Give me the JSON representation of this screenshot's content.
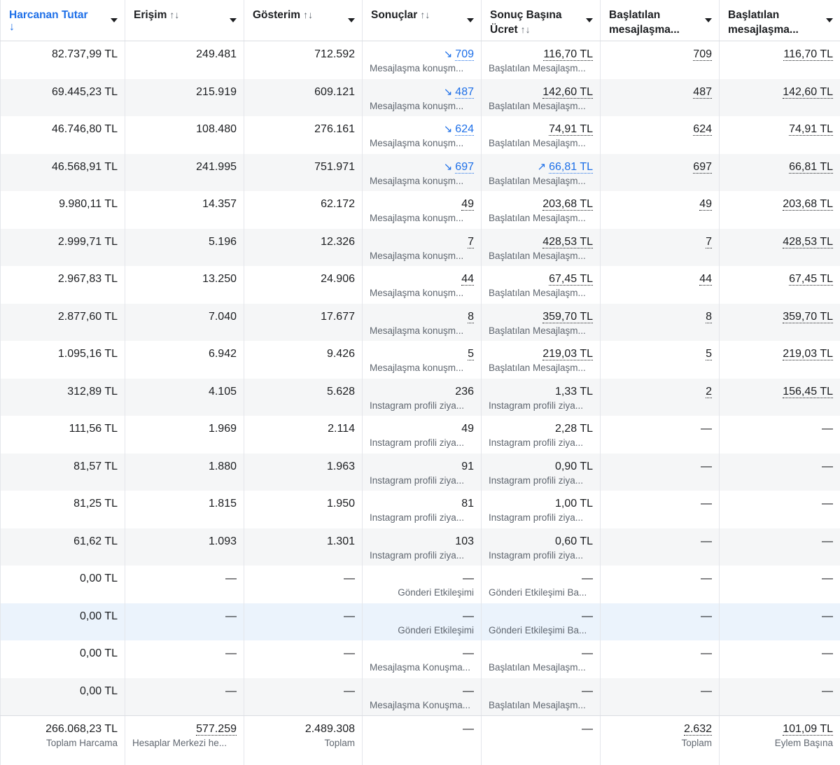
{
  "columns": [
    {
      "label": "Harcanan Tutar",
      "sort": "↓",
      "sorted": true
    },
    {
      "label": "Erişim",
      "sort": "↑↓"
    },
    {
      "label": "Gösterim",
      "sort": "↑↓"
    },
    {
      "label": "Sonuçlar",
      "sort": "↑↓"
    },
    {
      "label": "Sonuç Başına Ücret",
      "line1": "Sonuç Başına",
      "line2": "Ücret",
      "sort": "↑↓"
    },
    {
      "label": "Başlatılan mesajlaşma...",
      "line1": "Başlatılan",
      "line2": "mesajlaşma..."
    },
    {
      "label": "Başlatılan mesajlaşma...",
      "line1": "Başlatılan",
      "line2": "mesajlaşma..."
    }
  ],
  "rows": [
    {
      "spend": "82.737,99 TL",
      "reach": "249.481",
      "impr": "712.592",
      "results": "709",
      "results_trend": "↘",
      "results_sub": "Mesajlaşma konuşm...",
      "cpr": "116,70 TL",
      "cpr_sub": "Başlatılan Mesajlaşm...",
      "conv": "709",
      "cpc": "116,70 TL"
    },
    {
      "spend": "69.445,23 TL",
      "reach": "215.919",
      "impr": "609.121",
      "results": "487",
      "results_trend": "↘",
      "results_sub": "Mesajlaşma konuşm...",
      "cpr": "142,60 TL",
      "cpr_sub": "Başlatılan Mesajlaşm...",
      "conv": "487",
      "cpc": "142,60 TL"
    },
    {
      "spend": "46.746,80 TL",
      "reach": "108.480",
      "impr": "276.161",
      "results": "624",
      "results_trend": "↘",
      "results_sub": "Mesajlaşma konuşm...",
      "cpr": "74,91 TL",
      "cpr_sub": "Başlatılan Mesajlaşm...",
      "conv": "624",
      "cpc": "74,91 TL"
    },
    {
      "spend": "46.568,91 TL",
      "reach": "241.995",
      "impr": "751.971",
      "results": "697",
      "results_trend": "↘",
      "results_sub": "Mesajlaşma konuşm...",
      "cpr": "66,81 TL",
      "cpr_trend": "↗",
      "cpr_sub": "Başlatılan Mesajlaşm...",
      "conv": "697",
      "cpc": "66,81 TL"
    },
    {
      "spend": "9.980,11 TL",
      "reach": "14.357",
      "impr": "62.172",
      "results": "49",
      "results_sub": "Mesajlaşma konuşm...",
      "cpr": "203,68 TL",
      "cpr_sub": "Başlatılan Mesajlaşm...",
      "conv": "49",
      "cpc": "203,68 TL"
    },
    {
      "spend": "2.999,71 TL",
      "reach": "5.196",
      "impr": "12.326",
      "results": "7",
      "results_sub": "Mesajlaşma konuşm...",
      "cpr": "428,53 TL",
      "cpr_sub": "Başlatılan Mesajlaşm...",
      "conv": "7",
      "cpc": "428,53 TL"
    },
    {
      "spend": "2.967,83 TL",
      "reach": "13.250",
      "impr": "24.906",
      "results": "44",
      "results_sub": "Mesajlaşma konuşm...",
      "cpr": "67,45 TL",
      "cpr_sub": "Başlatılan Mesajlaşm...",
      "conv": "44",
      "cpc": "67,45 TL"
    },
    {
      "spend": "2.877,60 TL",
      "reach": "7.040",
      "impr": "17.677",
      "results": "8",
      "results_sub": "Mesajlaşma konuşm...",
      "cpr": "359,70 TL",
      "cpr_sub": "Başlatılan Mesajlaşm...",
      "conv": "8",
      "cpc": "359,70 TL"
    },
    {
      "spend": "1.095,16 TL",
      "reach": "6.942",
      "impr": "9.426",
      "results": "5",
      "results_sub": "Mesajlaşma konuşm...",
      "cpr": "219,03 TL",
      "cpr_sub": "Başlatılan Mesajlaşm...",
      "conv": "5",
      "cpc": "219,03 TL"
    },
    {
      "spend": "312,89 TL",
      "reach": "4.105",
      "impr": "5.628",
      "results": "236",
      "results_plain": true,
      "results_sub": "Instagram profili ziya...",
      "cpr": "1,33 TL",
      "cpr_plain": true,
      "cpr_sub": "Instagram profili ziya...",
      "conv": "2",
      "cpc": "156,45 TL"
    },
    {
      "spend": "111,56 TL",
      "reach": "1.969",
      "impr": "2.114",
      "results": "49",
      "results_plain": true,
      "results_sub": "Instagram profili ziya...",
      "cpr": "2,28 TL",
      "cpr_plain": true,
      "cpr_sub": "Instagram profili ziya...",
      "conv": "—",
      "cpc": "—"
    },
    {
      "spend": "81,57 TL",
      "reach": "1.880",
      "impr": "1.963",
      "results": "91",
      "results_plain": true,
      "results_sub": "Instagram profili ziya...",
      "cpr": "0,90 TL",
      "cpr_plain": true,
      "cpr_sub": "Instagram profili ziya...",
      "conv": "—",
      "cpc": "—"
    },
    {
      "spend": "81,25 TL",
      "reach": "1.815",
      "impr": "1.950",
      "results": "81",
      "results_plain": true,
      "results_sub": "Instagram profili ziya...",
      "cpr": "1,00 TL",
      "cpr_plain": true,
      "cpr_sub": "Instagram profili ziya...",
      "conv": "—",
      "cpc": "—"
    },
    {
      "spend": "61,62 TL",
      "reach": "1.093",
      "impr": "1.301",
      "results": "103",
      "results_plain": true,
      "results_sub": "Instagram profili ziya...",
      "cpr": "0,60 TL",
      "cpr_plain": true,
      "cpr_sub": "Instagram profili ziya...",
      "conv": "—",
      "cpc": "—"
    },
    {
      "spend": "0,00 TL",
      "reach": "—",
      "impr": "—",
      "results": "—",
      "results_plain": true,
      "results_sub": "Gönderi Etkileşimi",
      "results_sub_align": "right",
      "cpr": "—",
      "cpr_plain": true,
      "cpr_sub": "Gönderi Etkileşimi Ba...",
      "conv": "—",
      "cpc": "—"
    },
    {
      "spend": "0,00 TL",
      "reach": "—",
      "impr": "—",
      "results": "—",
      "results_plain": true,
      "results_sub": "Gönderi Etkileşimi",
      "results_sub_align": "right",
      "cpr": "—",
      "cpr_plain": true,
      "cpr_sub": "Gönderi Etkileşimi Ba...",
      "conv": "—",
      "cpc": "—",
      "highlight": true
    },
    {
      "spend": "0,00 TL",
      "reach": "—",
      "impr": "—",
      "results": "—",
      "results_plain": true,
      "results_sub": "Mesajlaşma Konuşma...",
      "cpr": "—",
      "cpr_plain": true,
      "cpr_sub": "Başlatılan Mesajlaşm...",
      "conv": "—",
      "cpc": "—"
    },
    {
      "spend": "0,00 TL",
      "reach": "—",
      "impr": "—",
      "results": "—",
      "results_plain": true,
      "results_sub": "Mesajlaşma Konuşma...",
      "cpr": "—",
      "cpr_plain": true,
      "cpr_sub": "Başlatılan Mesajlaşm...",
      "conv": "—",
      "cpc": "—"
    }
  ],
  "footer": {
    "spend": "266.068,23 TL",
    "spend_sub": "Toplam Harcama",
    "reach": "577.259",
    "reach_sub": "Hesaplar Merkezi he...",
    "impr": "2.489.308",
    "impr_sub": "Toplam",
    "results": "—",
    "cpr": "—",
    "conv": "2.632",
    "conv_sub": "Toplam",
    "cpc": "101,09 TL",
    "cpc_sub": "Eylem Başına"
  },
  "colors": {
    "accent": "#1d6fe8",
    "alt_row": "#f5f6f7",
    "highlight_row": "#ebf3fc",
    "muted": "#606770"
  }
}
